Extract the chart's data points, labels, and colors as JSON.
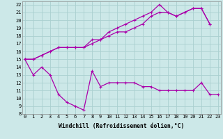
{
  "xlabel": "Windchill (Refroidissement éolien,°C)",
  "x": [
    0,
    1,
    2,
    3,
    4,
    5,
    6,
    7,
    8,
    9,
    10,
    11,
    12,
    13,
    14,
    15,
    16,
    17,
    18,
    19,
    20,
    21,
    22,
    23
  ],
  "series1": [
    15,
    13,
    14,
    13,
    10.5,
    9.5,
    9.0,
    8.5,
    13.5,
    11.5,
    12.0,
    12.0,
    12.0,
    12.0,
    11.5,
    11.5,
    11.0,
    11.0,
    11.0,
    11.0,
    11.0,
    12.0,
    10.5,
    10.5
  ],
  "series2": [
    15,
    15,
    15.5,
    16.0,
    16.5,
    16.5,
    16.5,
    16.5,
    17.0,
    17.5,
    18.0,
    18.5,
    18.5,
    19.0,
    19.5,
    20.5,
    21.0,
    21.0,
    20.5,
    21.0,
    21.5,
    21.5,
    19.5,
    null
  ],
  "series3": [
    15,
    15,
    15.5,
    16.0,
    16.5,
    16.5,
    16.5,
    16.5,
    17.5,
    17.5,
    18.5,
    19.0,
    19.5,
    20.0,
    20.5,
    21.0,
    22.0,
    21.0,
    20.5,
    21.0,
    21.5,
    21.5,
    19.5,
    null
  ],
  "yticks": [
    8,
    9,
    10,
    11,
    12,
    13,
    14,
    15,
    16,
    17,
    18,
    19,
    20,
    21,
    22
  ],
  "xticks": [
    0,
    1,
    2,
    3,
    4,
    5,
    6,
    7,
    8,
    9,
    10,
    11,
    12,
    13,
    14,
    15,
    16,
    17,
    18,
    19,
    20,
    21,
    22,
    23
  ],
  "ylim": [
    8,
    22.4
  ],
  "xlim": [
    -0.3,
    23.3
  ],
  "line_color": "#aa00aa",
  "bg_color": "#cce8e8",
  "grid_color": "#aad0d0",
  "tick_fontsize": 5.0,
  "xlabel_fontsize": 5.8
}
